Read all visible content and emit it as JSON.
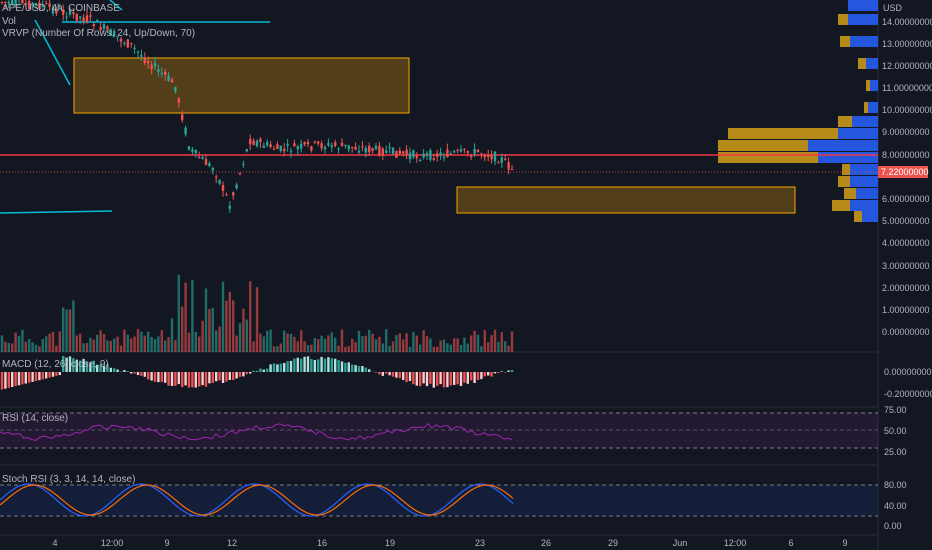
{
  "symbol_line": "APE/USD, 4h, COINBASE",
  "vol_label": "Vol",
  "vrvp_label": "VRVP (Number Of Rows, 24, Up/Down, 70)",
  "macd_label": "MACD (12, 26, close, 9)",
  "rsi_label": "RSI (14, close)",
  "stoch_label": "Stoch RSI (3, 3, 14, 14, close)",
  "current_price": "7.22000000",
  "colors": {
    "up": "#26a69a",
    "down": "#ef5350",
    "hline": "#f23645",
    "zone": "#f7a600",
    "vp_up": "#2962ff",
    "vp_down": "#d4a017",
    "rsi": "#9c27b0",
    "k": "#2962ff",
    "d": "#ff6d00",
    "cyan": "#00bcd4"
  },
  "price_axis": {
    "currency": "USD",
    "ticks": [
      "14.00000000",
      "13.00000000",
      "12.00000000",
      "11.00000000",
      "10.00000000",
      "9.00000000",
      "8.00000000",
      "6.00000000",
      "5.00000000",
      "4.00000000",
      "3.00000000",
      "2.00000000",
      "1.00000000",
      "0.00000000"
    ]
  },
  "macd_axis": [
    "0.00000000",
    "-0.20000000"
  ],
  "rsi_axis": [
    "75.00",
    "50.00",
    "25.00"
  ],
  "stoch_axis": [
    "80.00",
    "40.00",
    "0.00"
  ],
  "time_axis": [
    "4",
    "12:00",
    "9",
    "12",
    "16",
    "19",
    "23",
    "26",
    "29",
    "Jun",
    "12:00",
    "6",
    "9"
  ]
}
